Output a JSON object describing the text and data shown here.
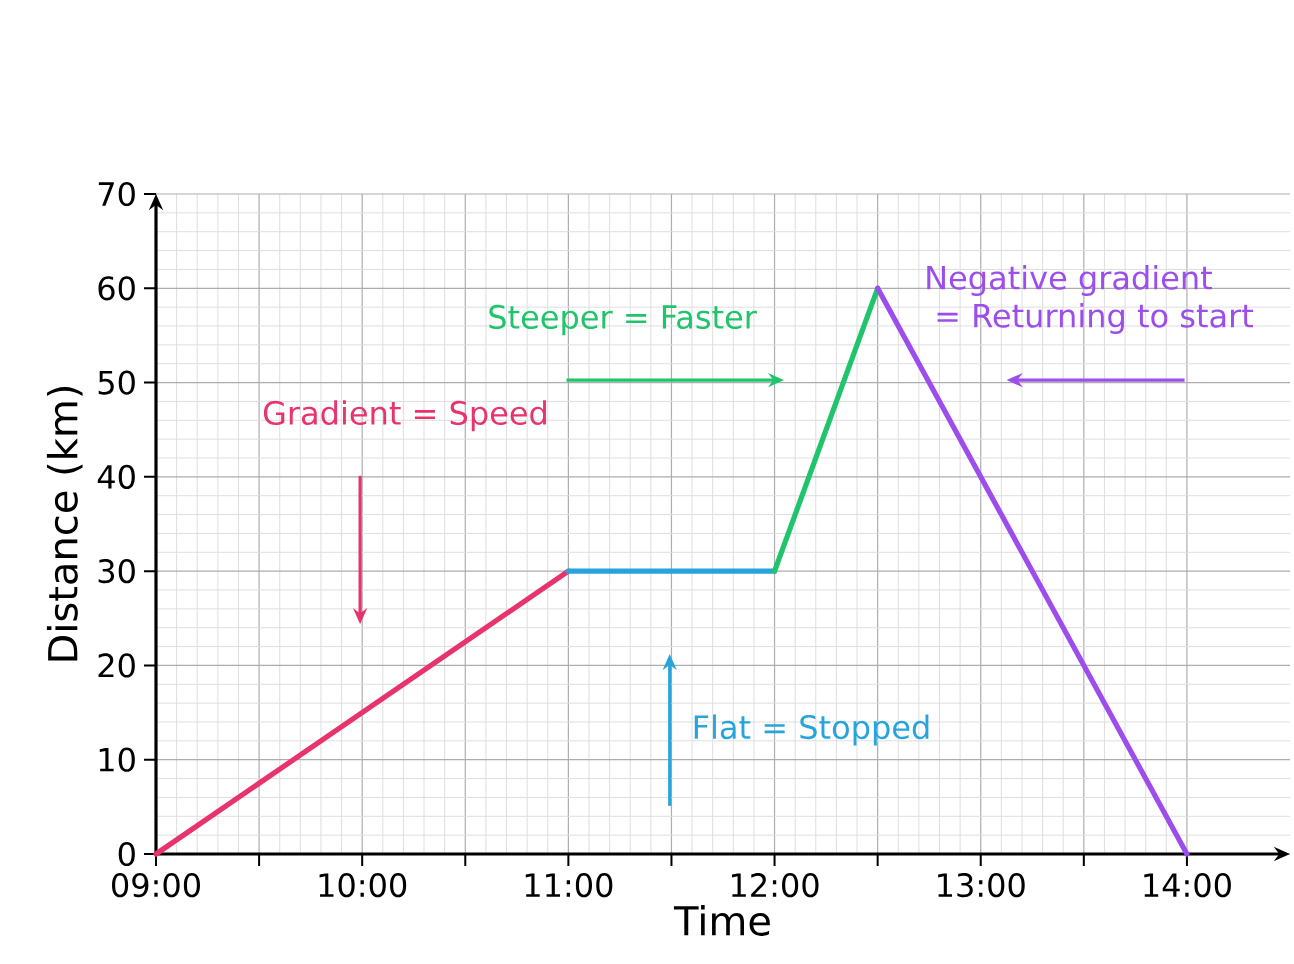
{
  "chart_data": {
    "type": "line",
    "xlabel": "Time",
    "ylabel": "Distance (km)",
    "xlim": [
      9,
      14.5
    ],
    "ylim": [
      0,
      70
    ],
    "xticks": [
      {
        "value": 9,
        "label": "09:00"
      },
      {
        "value": 9.5,
        "label": null
      },
      {
        "value": 10,
        "label": "10:00"
      },
      {
        "value": 10.5,
        "label": null
      },
      {
        "value": 11,
        "label": "11:00"
      },
      {
        "value": 11.5,
        "label": null
      },
      {
        "value": 12,
        "label": "12:00"
      },
      {
        "value": 12.5,
        "label": null
      },
      {
        "value": 13,
        "label": "13:00"
      },
      {
        "value": 13.5,
        "label": null
      },
      {
        "value": 14,
        "label": "14:00"
      }
    ],
    "yticks": [
      0,
      10,
      20,
      30,
      40,
      50,
      60,
      70
    ],
    "grid": true,
    "series": [
      {
        "color": "#e8336d",
        "x": [
          9,
          11
        ],
        "values": [
          0,
          30
        ]
      },
      {
        "color": "#28a4dc",
        "x": [
          11,
          12
        ],
        "values": [
          30,
          30
        ]
      },
      {
        "color": "#1fc46b",
        "x": [
          12,
          12.5
        ],
        "values": [
          30,
          60
        ]
      },
      {
        "color": "#9c4deb",
        "x": [
          12.5,
          14
        ],
        "values": [
          60,
          0
        ]
      }
    ],
    "annotations": [
      "Gradient = Speed",
      "Flat = Stopped",
      "Steeper = Faster",
      "Negative gradient = Returning to start"
    ]
  }
}
